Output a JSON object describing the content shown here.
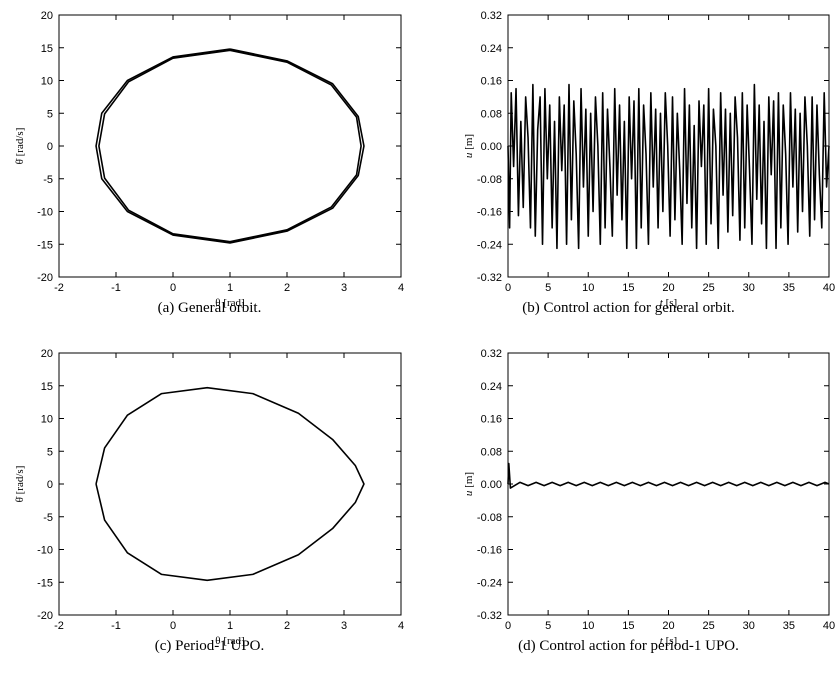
{
  "chart_data": [
    {
      "id": "a",
      "type": "line",
      "caption": "(a)  General orbit.",
      "xlabel": "θ [rad]",
      "ylabel": "θ̇ [rad/s]",
      "xlim": [
        -2,
        4
      ],
      "ylim": [
        -20,
        20
      ],
      "xticks": [
        -2,
        -1,
        0,
        1,
        2,
        3,
        4
      ],
      "yticks": [
        -20,
        -15,
        -10,
        -5,
        0,
        5,
        10,
        15,
        20
      ],
      "ytick_labels": [
        "-20",
        "-15",
        "-10",
        "-5",
        "0",
        "5",
        "10",
        "15",
        "20"
      ],
      "series": [
        {
          "x": [
            1.0,
            2.0,
            2.8,
            3.25,
            3.35,
            3.25,
            2.8,
            2.0,
            1.0,
            0.0,
            -0.8,
            -1.25,
            -1.35,
            -1.25,
            -0.8,
            0.0,
            1.0
          ],
          "y": [
            14.8,
            13.0,
            9.5,
            4.5,
            0.0,
            -4.5,
            -9.5,
            -13.0,
            -14.8,
            -13.6,
            -10.0,
            -5.0,
            0.0,
            5.0,
            10.0,
            13.6,
            14.8
          ]
        },
        {
          "x": [
            1.0,
            2.0,
            2.78,
            3.22,
            3.3,
            3.22,
            2.78,
            2.0,
            1.0,
            0.0,
            -0.78,
            -1.2,
            -1.3,
            -1.2,
            -0.78,
            0.0,
            1.0
          ],
          "y": [
            14.6,
            12.8,
            9.3,
            4.4,
            0.0,
            -4.4,
            -9.3,
            -12.8,
            -14.6,
            -13.4,
            -9.8,
            -4.9,
            0.0,
            4.9,
            9.8,
            13.4,
            14.6
          ]
        }
      ]
    },
    {
      "id": "b",
      "type": "line",
      "caption": "(b)  Control action for general orbit.",
      "xlabel_var": "t",
      "xlabel_unit": " [s]",
      "ylabel_var": "u",
      "ylabel_unit": " [m]",
      "xlim": [
        0,
        40
      ],
      "ylim": [
        -0.32,
        0.32
      ],
      "xticks": [
        0,
        5,
        10,
        15,
        20,
        25,
        30,
        35,
        40
      ],
      "yticks": [
        -0.32,
        -0.24,
        -0.16,
        -0.08,
        0.0,
        0.08,
        0.16,
        0.24,
        0.32
      ],
      "ytick_labels": [
        "-0.32",
        "-0.24",
        "-0.16",
        "-0.08",
        "0.00",
        "0.08",
        "0.16",
        "0.24",
        "0.32"
      ],
      "series": [
        {
          "x": [
            0.0,
            0.2,
            0.4,
            0.7,
            1.0,
            1.3,
            1.6,
            1.9,
            2.2,
            2.5,
            2.8,
            3.1,
            3.4,
            3.7,
            4.0,
            4.3,
            4.6,
            4.9,
            5.2,
            5.5,
            5.8,
            6.1,
            6.4,
            6.7,
            7.0,
            7.3,
            7.6,
            7.9,
            8.2,
            8.5,
            8.8,
            9.1,
            9.4,
            9.7,
            10.0,
            10.3,
            10.6,
            10.9,
            11.2,
            11.5,
            11.8,
            12.1,
            12.4,
            12.7,
            13.0,
            13.3,
            13.6,
            13.9,
            14.2,
            14.5,
            14.8,
            15.1,
            15.4,
            15.7,
            16.0,
            16.3,
            16.6,
            16.9,
            17.2,
            17.5,
            17.8,
            18.1,
            18.4,
            18.7,
            19.0,
            19.3,
            19.6,
            19.9,
            20.2,
            20.5,
            20.8,
            21.1,
            21.4,
            21.7,
            22.0,
            22.3,
            22.6,
            22.9,
            23.2,
            23.5,
            23.8,
            24.1,
            24.4,
            24.7,
            25.0,
            25.3,
            25.6,
            25.9,
            26.2,
            26.5,
            26.8,
            27.1,
            27.4,
            27.7,
            28.0,
            28.3,
            28.6,
            28.9,
            29.2,
            29.5,
            29.8,
            30.1,
            30.4,
            30.7,
            31.0,
            31.3,
            31.6,
            31.9,
            32.2,
            32.5,
            32.8,
            33.1,
            33.4,
            33.7,
            34.0,
            34.3,
            34.6,
            34.9,
            35.2,
            35.5,
            35.8,
            36.1,
            36.4,
            36.7,
            37.0,
            37.3,
            37.6,
            37.9,
            38.2,
            38.5,
            38.8,
            39.1,
            39.4,
            39.7,
            40.0
          ],
          "y": [
            0.0,
            -0.2,
            0.13,
            -0.05,
            0.14,
            -0.17,
            0.06,
            -0.15,
            0.12,
            0.02,
            -0.2,
            0.15,
            -0.22,
            0.04,
            0.12,
            -0.24,
            0.14,
            -0.08,
            0.1,
            -0.2,
            0.06,
            -0.25,
            0.12,
            -0.06,
            0.1,
            -0.24,
            0.15,
            -0.18,
            0.11,
            -0.02,
            -0.25,
            0.14,
            -0.1,
            0.09,
            -0.22,
            0.08,
            -0.16,
            0.12,
            0.0,
            -0.24,
            0.13,
            -0.2,
            0.09,
            -0.05,
            -0.22,
            0.14,
            -0.12,
            0.1,
            -0.18,
            0.06,
            -0.25,
            0.12,
            -0.08,
            0.11,
            -0.25,
            0.14,
            -0.2,
            0.1,
            -0.02,
            -0.24,
            0.13,
            -0.1,
            0.09,
            -0.2,
            0.08,
            -0.16,
            0.13,
            0.0,
            -0.22,
            0.12,
            -0.18,
            0.08,
            -0.06,
            -0.24,
            0.14,
            -0.14,
            0.1,
            -0.2,
            0.05,
            -0.25,
            0.11,
            -0.05,
            0.1,
            -0.24,
            0.14,
            -0.19,
            0.09,
            0.0,
            -0.25,
            0.13,
            -0.12,
            0.09,
            -0.21,
            0.08,
            -0.17,
            0.12,
            0.02,
            -0.23,
            0.13,
            -0.2,
            0.1,
            -0.06,
            -0.24,
            0.15,
            -0.13,
            0.1,
            -0.19,
            0.06,
            -0.25,
            0.12,
            -0.07,
            0.11,
            -0.25,
            0.13,
            -0.2,
            0.1,
            -0.02,
            -0.24,
            0.13,
            -0.1,
            0.09,
            -0.21,
            0.08,
            -0.16,
            0.12,
            0.0,
            -0.22,
            0.12,
            -0.18,
            0.1,
            -0.07,
            -0.2,
            0.13,
            -0.1,
            0.0
          ]
        }
      ]
    },
    {
      "id": "c",
      "type": "line",
      "caption": "(c)  Period-1 UPO.",
      "xlabel": "θ [rad]",
      "ylabel": "θ̇ [rad/s]",
      "xlim": [
        -2,
        4
      ],
      "ylim": [
        -20,
        20
      ],
      "xticks": [
        -2,
        -1,
        0,
        1,
        2,
        3,
        4
      ],
      "yticks": [
        -20,
        -15,
        -10,
        -5,
        0,
        5,
        10,
        15,
        20
      ],
      "ytick_labels": [
        "-20",
        "-15",
        "-10",
        "-5",
        "0",
        "5",
        "10",
        "15",
        "20"
      ],
      "series": [
        {
          "x": [
            -1.35,
            -1.2,
            -0.8,
            -0.2,
            0.6,
            1.4,
            2.2,
            2.8,
            3.2,
            3.35,
            3.2,
            2.8,
            2.2,
            1.4,
            0.6,
            -0.2,
            -0.8,
            -1.2,
            -1.35
          ],
          "y": [
            0.0,
            5.5,
            10.5,
            13.8,
            14.7,
            13.8,
            10.8,
            6.8,
            2.8,
            0.0,
            -2.8,
            -6.8,
            -10.8,
            -13.8,
            -14.7,
            -13.8,
            -10.5,
            -5.5,
            0.0
          ]
        }
      ]
    },
    {
      "id": "d",
      "type": "line",
      "caption": "(d)  Control action for period-1 UPO.",
      "xlabel_var": "t",
      "xlabel_unit": " [s]",
      "ylabel_var": "u",
      "ylabel_unit": " [m]",
      "xlim": [
        0,
        40
      ],
      "ylim": [
        -0.32,
        0.32
      ],
      "xticks": [
        0,
        5,
        10,
        15,
        20,
        25,
        30,
        35,
        40
      ],
      "yticks": [
        -0.32,
        -0.24,
        -0.16,
        -0.08,
        0.0,
        0.08,
        0.16,
        0.24,
        0.32
      ],
      "ytick_labels": [
        "-0.32",
        "-0.24",
        "-0.16",
        "-0.08",
        "0.00",
        "0.08",
        "0.16",
        "0.24",
        "0.32"
      ],
      "series": [
        {
          "x": [
            0.0,
            0.1,
            0.3,
            1.5,
            2.5,
            3.5,
            4.5,
            5.5,
            6.5,
            7.5,
            8.5,
            9.5,
            10.5,
            11.5,
            12.5,
            13.5,
            14.5,
            15.5,
            16.5,
            17.5,
            18.5,
            19.5,
            20.5,
            21.5,
            22.5,
            23.5,
            24.5,
            25.5,
            26.5,
            27.5,
            28.5,
            29.5,
            30.5,
            31.5,
            32.5,
            33.5,
            34.5,
            35.5,
            36.5,
            37.5,
            38.5,
            39.5,
            40.0
          ],
          "y": [
            0.0,
            0.05,
            -0.01,
            0.004,
            -0.004,
            0.004,
            -0.004,
            0.004,
            -0.004,
            0.004,
            -0.004,
            0.004,
            -0.004,
            0.004,
            -0.004,
            0.004,
            -0.004,
            0.004,
            -0.004,
            0.004,
            -0.004,
            0.004,
            -0.004,
            0.004,
            -0.004,
            0.004,
            -0.004,
            0.004,
            -0.004,
            0.004,
            -0.004,
            0.004,
            -0.004,
            0.004,
            -0.004,
            0.004,
            -0.004,
            0.004,
            -0.004,
            0.004,
            -0.004,
            0.004,
            0.0
          ]
        }
      ]
    }
  ]
}
